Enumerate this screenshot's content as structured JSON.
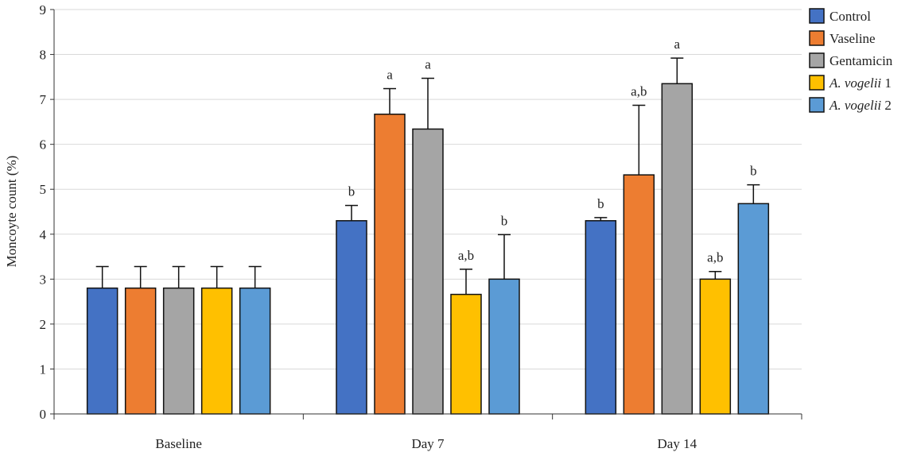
{
  "chart_data": {
    "type": "bar",
    "ylabel": "Moncoyte count (%)",
    "xlabel": "",
    "ylim": [
      0,
      9
    ],
    "yticks": [
      0,
      1,
      2,
      3,
      4,
      5,
      6,
      7,
      8,
      9
    ],
    "grid": true,
    "legend_position": "top-right",
    "categories": [
      "Baseline",
      "Day 7",
      "Day 14"
    ],
    "series": [
      {
        "name": "Control",
        "color": "#4472C4",
        "values": [
          2.8,
          4.3,
          4.3
        ],
        "error_upper": [
          3.28,
          4.64,
          4.37
        ],
        "labels": [
          "",
          "b",
          "b"
        ]
      },
      {
        "name": "Vaseline",
        "color": "#ED7D31",
        "values": [
          2.8,
          6.67,
          5.32
        ],
        "error_upper": [
          3.28,
          7.24,
          6.87
        ],
        "labels": [
          "",
          "a",
          "a,b"
        ]
      },
      {
        "name": "Gentamicin",
        "color": "#A5A5A5",
        "values": [
          2.8,
          6.34,
          7.35
        ],
        "error_upper": [
          3.28,
          7.47,
          7.92
        ],
        "labels": [
          "",
          "a",
          "a"
        ]
      },
      {
        "name": "A. vogelii 1",
        "color": "#FFC000",
        "values": [
          2.8,
          2.66,
          3.0
        ],
        "error_upper": [
          3.28,
          3.22,
          3.17
        ],
        "labels": [
          "",
          "a,b",
          "a,b"
        ]
      },
      {
        "name": "A. vogelii 2",
        "color": "#5B9BD5",
        "values": [
          2.8,
          3.0,
          4.68
        ],
        "error_upper": [
          3.28,
          3.99,
          5.1
        ],
        "labels": [
          "",
          "b",
          "b"
        ]
      }
    ]
  }
}
